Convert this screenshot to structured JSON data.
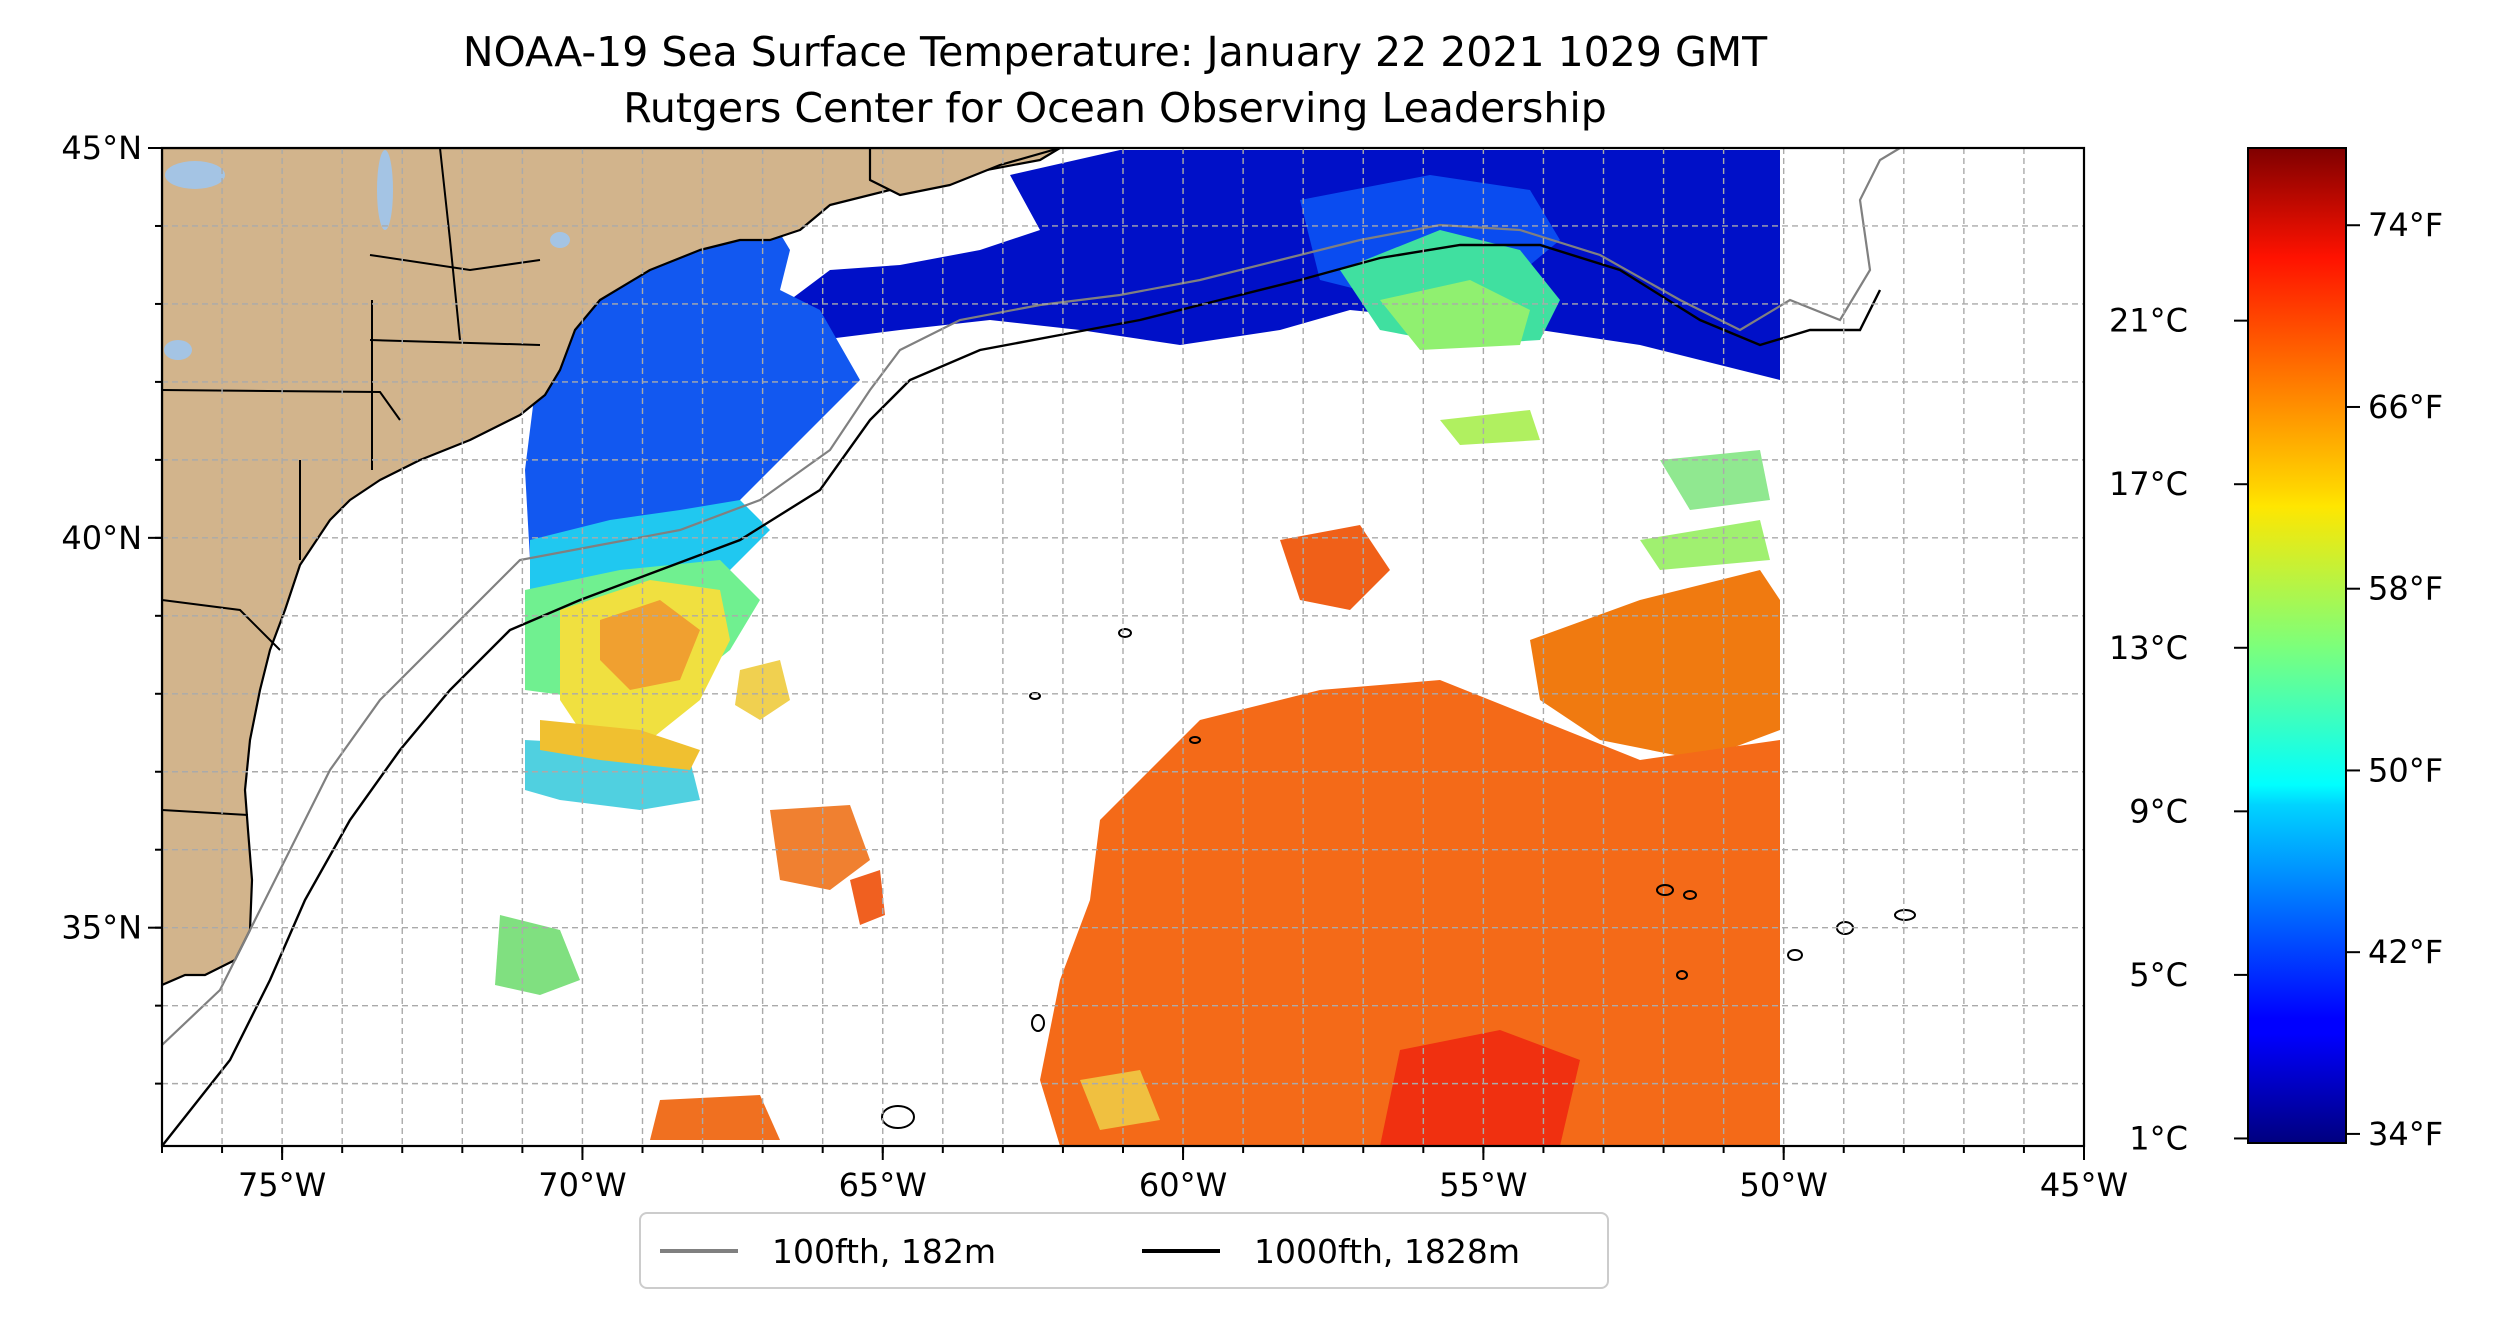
{
  "title": {
    "line1": "NOAA-19 Sea Surface Temperature: January 22 2021 1029 GMT",
    "line2": "Rutgers Center for Ocean Observing Leadership"
  },
  "map": {
    "lon_range": [
      -77,
      -45
    ],
    "lat_range": [
      32.2,
      45
    ],
    "lat_ticks": [
      {
        "value": 45,
        "label": "45°N"
      },
      {
        "value": 40,
        "label": "40°N"
      },
      {
        "value": 35,
        "label": "35°N"
      }
    ],
    "lon_ticks": [
      {
        "value": -75,
        "label": "75°W"
      },
      {
        "value": -70,
        "label": "70°W"
      },
      {
        "value": -65,
        "label": "65°W"
      },
      {
        "value": -60,
        "label": "60°W"
      },
      {
        "value": -55,
        "label": "55°W"
      },
      {
        "value": -50,
        "label": "50°W"
      },
      {
        "value": -45,
        "label": "45°W"
      }
    ],
    "gridlines": true,
    "colors": {
      "land": "#d2b48c",
      "lakes": "#a4c4e4",
      "coast": "#000000",
      "contour_100fth": "#808080",
      "contour_1000fth": "#000000",
      "grid": "#aaaaaa"
    }
  },
  "colorbar": {
    "colormap": "jet",
    "celsius_ticks": [
      {
        "value": 1,
        "label": "1°C"
      },
      {
        "value": 5,
        "label": "5°C"
      },
      {
        "value": 9,
        "label": "9°C"
      },
      {
        "value": 13,
        "label": "13°C"
      },
      {
        "value": 17,
        "label": "17°C"
      },
      {
        "value": 21,
        "label": "21°C"
      }
    ],
    "fahrenheit_ticks": [
      {
        "value": 34,
        "label": "34°F"
      },
      {
        "value": 42,
        "label": "42°F"
      },
      {
        "value": 50,
        "label": "50°F"
      },
      {
        "value": 58,
        "label": "58°F"
      },
      {
        "value": 66,
        "label": "66°F"
      },
      {
        "value": 74,
        "label": "74°F"
      }
    ],
    "range_f": [
      33.6,
      77.4
    ]
  },
  "legend": {
    "placement": "bottom-center",
    "entries": [
      {
        "label": "100fth, 182m",
        "color": "#808080"
      },
      {
        "label": "1000fth, 1828m",
        "color": "#000000"
      }
    ]
  }
}
